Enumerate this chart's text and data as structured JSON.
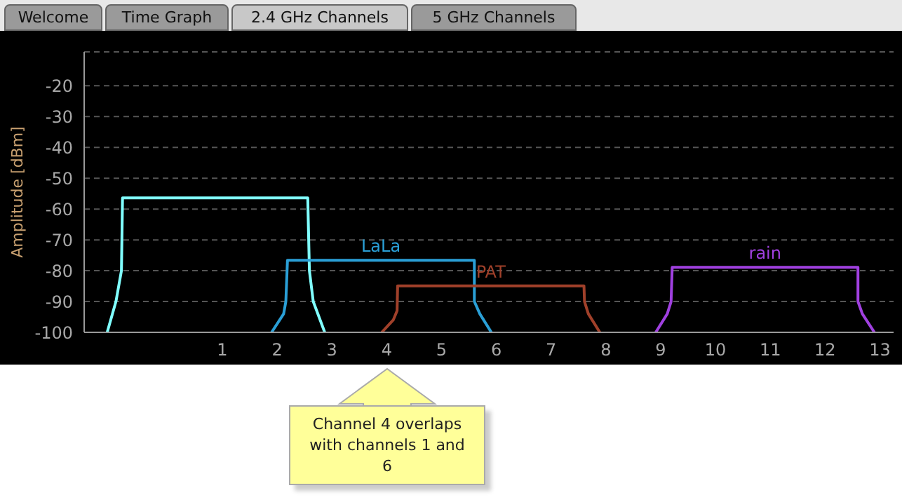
{
  "chart_data": {
    "type": "line",
    "ylabel": "Amplitude [dBm]",
    "xlim": [
      -1.52,
      13.25
    ],
    "xticks": [
      1,
      2,
      3,
      4,
      5,
      6,
      7,
      8,
      9,
      10,
      11,
      12,
      13
    ],
    "ylim": [
      -100,
      -9
    ],
    "yticks": [
      -20,
      -30,
      -40,
      -50,
      -60,
      -70,
      -80,
      -90,
      -100
    ],
    "grid": "y",
    "legend": false,
    "marker": "none",
    "line_style": "solid",
    "series": [
      {
        "color": "#80ffff",
        "x": [
          -1.1,
          -0.94,
          -0.84,
          -0.82,
          2.56,
          2.59,
          2.66,
          2.87
        ],
        "values": [
          -100,
          -90,
          -80,
          -56.4,
          -56.4,
          -80,
          -90,
          -100
        ]
      },
      {
        "name": "LaLa",
        "color": "#2a9fd6",
        "x": [
          1.9,
          2.12,
          2.16,
          2.19,
          5.6,
          5.6,
          5.7,
          5.91
        ],
        "values": [
          -100,
          -94,
          -90,
          -76.6,
          -76.6,
          -90,
          -94,
          -100
        ]
      },
      {
        "name": "PAT",
        "color": "#a0402a",
        "x": [
          3.91,
          4.12,
          4.19,
          4.2,
          7.6,
          7.61,
          7.68,
          7.89
        ],
        "values": [
          -100,
          -96,
          -93,
          -84.9,
          -84.9,
          -90,
          -94,
          -100
        ]
      },
      {
        "name": "rain",
        "color": "#a040e0",
        "x": [
          8.91,
          9.12,
          9.19,
          9.21,
          12.6,
          12.6,
          12.68,
          12.9
        ],
        "values": [
          -100,
          -94,
          -90,
          -78.9,
          -78.9,
          -90,
          -94,
          -100
        ]
      }
    ],
    "annotations": [
      "Welcome",
      "Time Graph",
      "2.4 GHz Channels",
      "5 GHz Channels",
      "Channel 4 overlaps with channels 1 and 6"
    ]
  }
}
